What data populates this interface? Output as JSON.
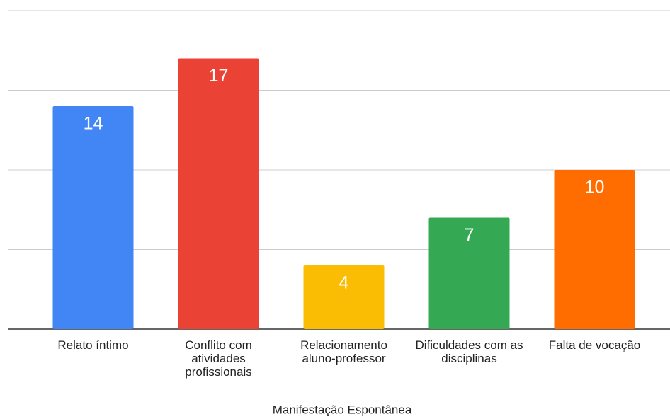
{
  "chart_data": {
    "type": "bar",
    "x_label": "Manifestação Espontânea",
    "categories": [
      "Relato íntimo",
      "Conflito com atividades profissionais",
      "Relacionamento aluno-professor",
      "Dificuldades com as disciplinas",
      "Falta de vocação"
    ],
    "values": [
      14,
      17,
      4,
      7,
      10
    ],
    "colors": [
      "#4285f4",
      "#ea4335",
      "#fbbc04",
      "#34a853",
      "#ff6d01"
    ],
    "ylim": [
      0,
      20
    ],
    "yticks": [
      0,
      5,
      10,
      15,
      20
    ],
    "grid": true
  }
}
